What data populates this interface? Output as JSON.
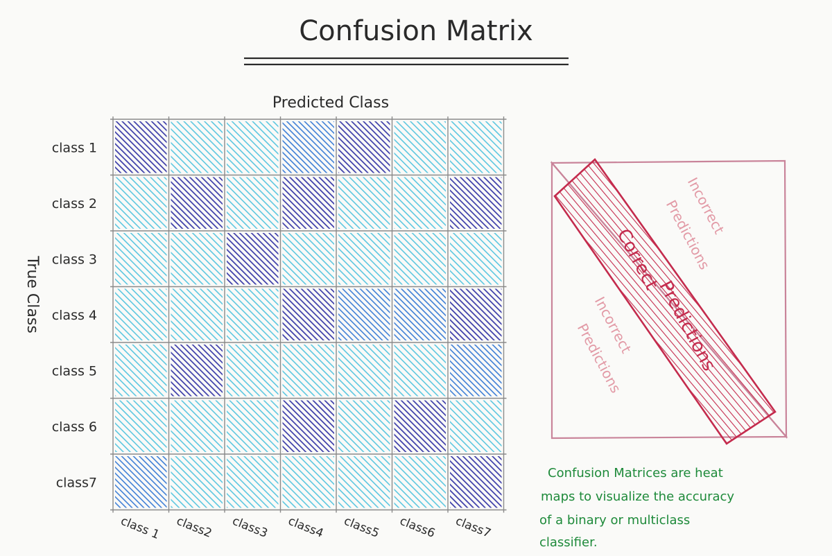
{
  "title": "Confusion Matrix",
  "axis": {
    "x_title": "Predicted Class",
    "y_title": "True Class"
  },
  "matrix": {
    "row_labels": [
      "class 1",
      "class 2",
      "class 3",
      "class 4",
      "class 5",
      "class 6",
      "class7"
    ],
    "col_labels": [
      "class 1",
      "class2",
      "class3",
      "class4",
      "class5",
      "class6",
      "class7"
    ],
    "levels": [
      [
        3,
        1,
        1,
        2,
        3,
        1,
        1
      ],
      [
        1,
        3,
        1,
        3,
        1,
        1,
        3
      ],
      [
        1,
        1,
        3,
        1,
        1,
        1,
        1
      ],
      [
        1,
        1,
        1,
        3,
        2,
        2,
        3
      ],
      [
        1,
        3,
        1,
        1,
        1,
        1,
        2
      ],
      [
        1,
        1,
        1,
        3,
        1,
        3,
        1
      ],
      [
        2,
        1,
        1,
        1,
        1,
        1,
        3
      ]
    ],
    "level_colors": {
      "1": "#5cc7e0",
      "2": "#3f7fd6",
      "3": "#3a3ba8"
    }
  },
  "diagram": {
    "incorrect_top": [
      "Incorrect",
      "Predictions"
    ],
    "correct": [
      "Correct",
      "Predictions"
    ],
    "incorrect_bottom": [
      "Incorrect",
      "Predictions"
    ],
    "colors": {
      "frame": "#c9849a",
      "band": "#c42b4d",
      "incorrect_text": "#e29aa6"
    }
  },
  "note": {
    "lines": [
      "Confusion Matrices are heat",
      "maps to visualize the accuracy",
      "of a binary or multiclass",
      "classifier."
    ],
    "color": "#1e8a3a"
  }
}
